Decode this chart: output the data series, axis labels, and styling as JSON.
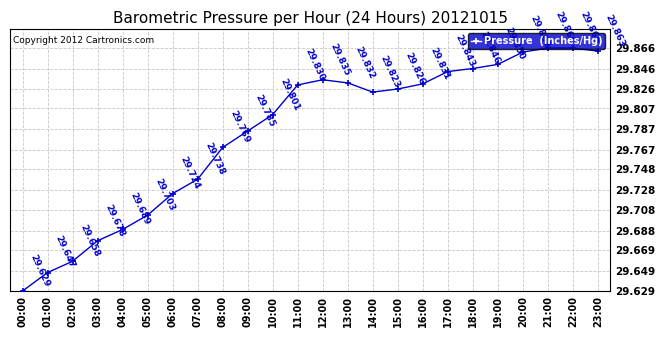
{
  "title": "Barometric Pressure per Hour (24 Hours) 20121015",
  "copyright": "Copyright 2012 Cartronics.com",
  "legend_label": "Pressure  (Inches/Hg)",
  "hours": [
    "00:00",
    "01:00",
    "02:00",
    "03:00",
    "04:00",
    "05:00",
    "06:00",
    "07:00",
    "08:00",
    "09:00",
    "10:00",
    "11:00",
    "12:00",
    "13:00",
    "14:00",
    "15:00",
    "16:00",
    "17:00",
    "18:00",
    "19:00",
    "20:00",
    "21:00",
    "22:00",
    "23:00"
  ],
  "values": [
    29.629,
    29.647,
    29.658,
    29.678,
    29.689,
    29.703,
    29.724,
    29.738,
    29.769,
    29.785,
    29.801,
    29.83,
    29.835,
    29.832,
    29.823,
    29.826,
    29.831,
    29.843,
    29.846,
    29.85,
    29.862,
    29.866,
    29.866,
    29.863
  ],
  "ylim_min": 29.629,
  "ylim_max": 29.885,
  "yticks": [
    29.629,
    29.649,
    29.669,
    29.688,
    29.708,
    29.728,
    29.748,
    29.767,
    29.787,
    29.807,
    29.826,
    29.846,
    29.866
  ],
  "line_color": "#0000cc",
  "marker_color": "#0000cc",
  "grid_color": "#c8c8c8",
  "bg_color": "#ffffff",
  "title_color": "#000000",
  "label_color": "#0000cc",
  "legend_bg": "#0000cc",
  "legend_fg": "#ffffff",
  "annotation_rotation": -65,
  "annotation_fontsize": 6.5
}
